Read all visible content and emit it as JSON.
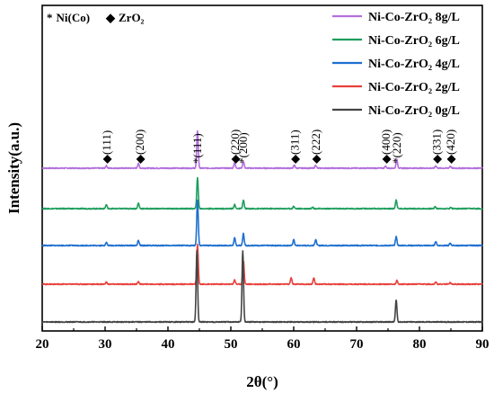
{
  "chart_data": {
    "type": "line",
    "xlabel": "2θ(°)",
    "ylabel": "Intensity(a.u.)",
    "xlim": [
      20,
      90
    ],
    "xticks": [
      "20",
      "30",
      "40",
      "50",
      "60",
      "70",
      "80",
      "90"
    ],
    "yticks_shown": false,
    "phase_legend": [
      {
        "symbol": "*",
        "label": "Ni(Co)"
      },
      {
        "symbol": "◆",
        "label": "ZrO₂"
      }
    ],
    "legend_position": "top-right",
    "series": [
      {
        "name": "Ni-Co-ZrO₂ 8g/L",
        "color": "#b36fdc",
        "peaks": [
          {
            "x": 30.2,
            "h": 0.12
          },
          {
            "x": 35.3,
            "h": 0.25
          },
          {
            "x": 44.7,
            "h": 1.9
          },
          {
            "x": 50.6,
            "h": 0.28
          },
          {
            "x": 52.0,
            "h": 0.35
          },
          {
            "x": 60.1,
            "h": 0.15
          },
          {
            "x": 63.5,
            "h": 0.15
          },
          {
            "x": 74.6,
            "h": 0.1
          },
          {
            "x": 76.4,
            "h": 0.45
          },
          {
            "x": 82.6,
            "h": 0.12
          },
          {
            "x": 84.9,
            "h": 0.1
          }
        ]
      },
      {
        "name": "Ni-Co-ZrO₂ 6g/L",
        "color": "#1e9e5e",
        "peaks": [
          {
            "x": 30.2,
            "h": 0.2
          },
          {
            "x": 35.3,
            "h": 0.28
          },
          {
            "x": 44.7,
            "h": 1.55
          },
          {
            "x": 50.6,
            "h": 0.2
          },
          {
            "x": 52.0,
            "h": 0.42
          },
          {
            "x": 60.0,
            "h": 0.12
          },
          {
            "x": 63.0,
            "h": 0.08
          },
          {
            "x": 76.3,
            "h": 0.45
          },
          {
            "x": 82.5,
            "h": 0.1
          },
          {
            "x": 85.0,
            "h": 0.06
          }
        ]
      },
      {
        "name": "Ni-Co-ZrO₂ 4g/L",
        "color": "#1f6fd0",
        "peaks": [
          {
            "x": 30.2,
            "h": 0.15
          },
          {
            "x": 35.3,
            "h": 0.25
          },
          {
            "x": 44.7,
            "h": 2.3
          },
          {
            "x": 50.6,
            "h": 0.38
          },
          {
            "x": 52.0,
            "h": 0.6
          },
          {
            "x": 60.0,
            "h": 0.3
          },
          {
            "x": 63.5,
            "h": 0.3
          },
          {
            "x": 76.3,
            "h": 0.45
          },
          {
            "x": 82.6,
            "h": 0.2
          },
          {
            "x": 84.9,
            "h": 0.12
          }
        ]
      },
      {
        "name": "Ni-Co-ZrO₂ 2g/L",
        "color": "#e8413c",
        "peaks": [
          {
            "x": 30.2,
            "h": 0.1
          },
          {
            "x": 35.3,
            "h": 0.12
          },
          {
            "x": 44.7,
            "h": 2.0
          },
          {
            "x": 50.6,
            "h": 0.22
          },
          {
            "x": 52.0,
            "h": 1.2
          },
          {
            "x": 59.6,
            "h": 0.32
          },
          {
            "x": 63.2,
            "h": 0.3
          },
          {
            "x": 76.4,
            "h": 0.18
          },
          {
            "x": 82.6,
            "h": 0.1
          },
          {
            "x": 84.9,
            "h": 0.08
          }
        ]
      },
      {
        "name": "Ni-Co-ZrO₂ 0g/L",
        "color": "#444444",
        "peaks": [
          {
            "x": 44.6,
            "h": 3.6
          },
          {
            "x": 51.9,
            "h": 3.6
          },
          {
            "x": 76.3,
            "h": 1.1
          }
        ]
      }
    ],
    "annotations": [
      {
        "x": 30.3,
        "symbol": "◆",
        "label": "(111)"
      },
      {
        "x": 35.6,
        "symbol": "◆",
        "label": "(200)"
      },
      {
        "x": 44.7,
        "symbol": "*",
        "label": "(111)"
      },
      {
        "x": 50.7,
        "symbol": "◆",
        "label": "(220)"
      },
      {
        "x": 52.0,
        "symbol": "*",
        "label": "(200)"
      },
      {
        "x": 60.2,
        "symbol": "◆",
        "label": "(311)"
      },
      {
        "x": 63.6,
        "symbol": "◆",
        "label": "(222)"
      },
      {
        "x": 74.7,
        "symbol": "◆",
        "label": "(400)"
      },
      {
        "x": 76.4,
        "symbol": "*",
        "label": "(220)"
      },
      {
        "x": 82.8,
        "symbol": "◆",
        "label": "(331)"
      },
      {
        "x": 85.0,
        "symbol": "◆",
        "label": "(420)"
      }
    ]
  }
}
